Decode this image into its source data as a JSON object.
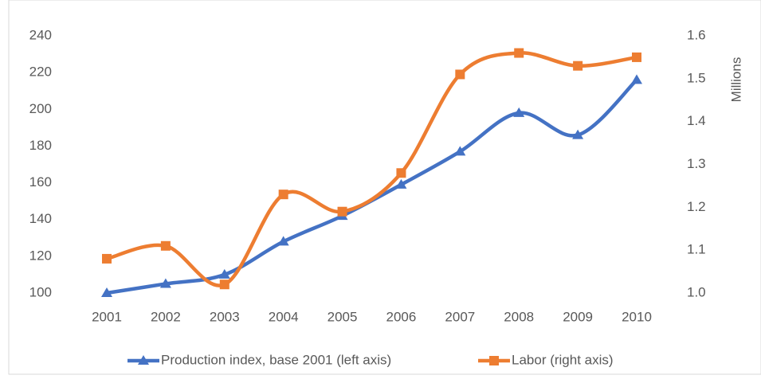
{
  "chart_data": {
    "type": "line",
    "categories": [
      "2001",
      "2002",
      "2003",
      "2004",
      "2005",
      "2006",
      "2007",
      "2008",
      "2009",
      "2010"
    ],
    "series": [
      {
        "name": "Production index, base 2001 (left axis)",
        "color": "#4472c4",
        "marker": "triangle",
        "values": [
          100,
          105,
          110,
          128,
          142,
          159,
          177,
          198,
          186,
          216
        ]
      },
      {
        "name": "Labor (right axis)",
        "color": "#ed7d31",
        "marker": "square",
        "axis": "y2",
        "values": [
          1.08,
          1.11,
          1.02,
          1.23,
          1.19,
          1.28,
          1.51,
          1.56,
          1.53,
          1.55
        ]
      }
    ],
    "ylim": [
      100,
      240
    ],
    "yticks": [
      100,
      120,
      140,
      160,
      180,
      200,
      220,
      240
    ],
    "y2lim": [
      1,
      1.6
    ],
    "y2ticks": [
      {
        "value": 1,
        "label": "1.0"
      },
      1.1,
      1.2,
      1.3,
      1.4,
      1.5,
      1.6
    ],
    "y2label": "Millions",
    "smooth": true,
    "grid": false,
    "legend": "bottom"
  }
}
